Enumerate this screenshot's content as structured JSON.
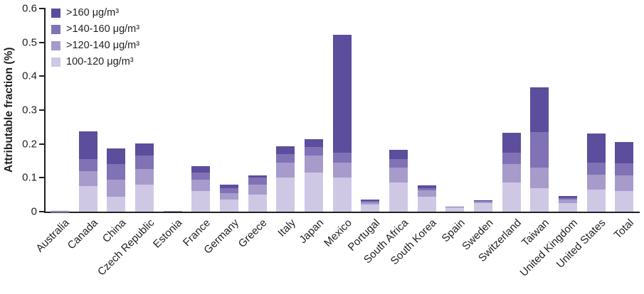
{
  "chart_data": {
    "type": "bar",
    "stacked": true,
    "title": "",
    "xlabel": "",
    "ylabel": "Attributable fraction (%)",
    "ylim": [
      0,
      0.6
    ],
    "yticks": [
      "0",
      "0.1",
      "0.2",
      "0.3",
      "0.4",
      "0.5",
      "0.6"
    ],
    "grid": false,
    "legend": {
      "position": "top-left",
      "labels_top_to_bottom": [
        ">160 μg/m³",
        ">140-160 μg/m³",
        ">120-140 μg/m³",
        "100-120 μg/m³"
      ]
    },
    "categories": [
      "Australia",
      "Canada",
      "China",
      "Czech Republic",
      "Estonia",
      "France",
      "Germany",
      "Greece",
      "Italy",
      "Japan",
      "Mexico",
      "Portugal",
      "South Africa",
      "South Korea",
      "Spain",
      "Sweden",
      "Switzerland",
      "Taiwan",
      "United Kingdom",
      "United States",
      "Total"
    ],
    "series": [
      {
        "name": "100-120 μg/m³",
        "color": "#cfc8e5",
        "values": [
          0.001,
          0.075,
          0.045,
          0.08,
          0.002,
          0.06,
          0.035,
          0.05,
          0.1,
          0.115,
          0.1,
          0.02,
          0.085,
          0.045,
          0.012,
          0.025,
          0.085,
          0.07,
          0.025,
          0.065,
          0.06
        ]
      },
      {
        "name": ">120-140 μg/m³",
        "color": "#a79bcb",
        "values": [
          0.0005,
          0.045,
          0.05,
          0.045,
          0.001,
          0.035,
          0.02,
          0.03,
          0.045,
          0.05,
          0.045,
          0.008,
          0.045,
          0.017,
          0.002,
          0.005,
          0.055,
          0.06,
          0.01,
          0.045,
          0.048
        ]
      },
      {
        "name": ">140-160 μg/m³",
        "color": "#8072b5",
        "values": [
          0.0003,
          0.035,
          0.045,
          0.04,
          0.0,
          0.02,
          0.015,
          0.02,
          0.025,
          0.025,
          0.03,
          0.004,
          0.025,
          0.008,
          0.001,
          0.002,
          0.035,
          0.105,
          0.005,
          0.035,
          0.035
        ]
      },
      {
        "name": ">160 μg/m³",
        "color": "#5c4d9d",
        "values": [
          0.0002,
          0.082,
          0.047,
          0.037,
          0.0,
          0.02,
          0.01,
          0.008,
          0.023,
          0.023,
          0.348,
          0.003,
          0.028,
          0.007,
          0.0,
          0.001,
          0.058,
          0.132,
          0.006,
          0.085,
          0.062
        ]
      }
    ],
    "totals": [
      0.002,
      0.237,
      0.187,
      0.202,
      0.003,
      0.135,
      0.08,
      0.108,
      0.193,
      0.213,
      0.523,
      0.035,
      0.183,
      0.077,
      0.015,
      0.033,
      0.233,
      0.367,
      0.046,
      0.23,
      0.205
    ]
  },
  "colors": {
    "axis": "#231f20",
    "text": "#231f20",
    "background": "#ffffff"
  }
}
